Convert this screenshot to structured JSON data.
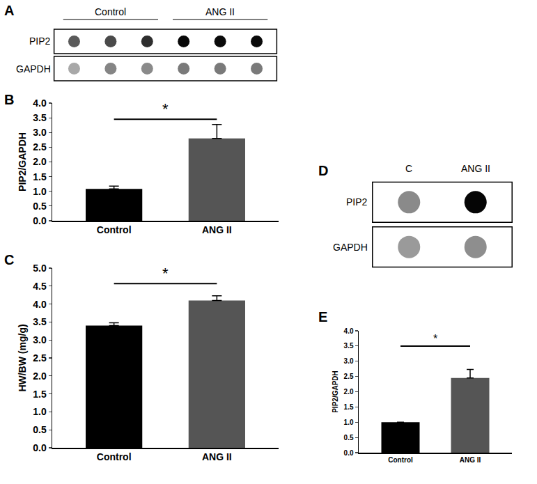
{
  "chart_data": [
    {
      "type": "dot_blot",
      "title": "A",
      "groups": [
        "Control",
        "ANG II"
      ],
      "series": [
        {
          "name": "PIP2",
          "colors": [
            "#5a5a5a",
            "#4a4a4a",
            "#2e2e2e",
            "#080808",
            "#0a0a0a",
            "#0a0a0a"
          ]
        },
        {
          "name": "GAPDH",
          "colors": [
            "#a8a8a8",
            "#858585",
            "#8a8a8a",
            "#7a7a7a",
            "#7a7a7a",
            "#7a7a7a"
          ]
        }
      ]
    },
    {
      "type": "bar",
      "title": "B",
      "categories": [
        "Control",
        "ANG II"
      ],
      "values": [
        1.08,
        2.8
      ],
      "errors": [
        0.1,
        0.47
      ],
      "colors": [
        "#000000",
        "#555555"
      ],
      "ylabel": "PIP2/GAPDH",
      "ylim": [
        0,
        4
      ],
      "yticks": [
        {
          "value": 0,
          "label": "0.0"
        },
        {
          "value": 0.5,
          "label": "0.5"
        },
        {
          "value": 1,
          "label": "1.0"
        },
        {
          "value": 1.5,
          "label": "1.5"
        },
        {
          "value": 2,
          "label": "2.0"
        },
        {
          "value": 2.5,
          "label": "2.5"
        },
        {
          "value": 3,
          "label": "3.0"
        },
        {
          "value": 3.5,
          "label": "3.5"
        },
        {
          "value": 4,
          "label": "4.0"
        }
      ],
      "significance": {
        "text": "*",
        "y": 3.45
      }
    },
    {
      "type": "bar",
      "title": "C",
      "categories": [
        "Control",
        "ANG II"
      ],
      "values": [
        3.4,
        4.1
      ],
      "errors": [
        0.08,
        0.13
      ],
      "colors": [
        "#000000",
        "#555555"
      ],
      "ylabel": "HW/BW (mg/g)",
      "ylim": [
        0,
        5
      ],
      "yticks": [
        {
          "value": 0,
          "label": "0.0"
        },
        {
          "value": 0.5,
          "label": "0.5"
        },
        {
          "value": 1,
          "label": "1.0"
        },
        {
          "value": 1.5,
          "label": "1.5"
        },
        {
          "value": 2,
          "label": "2.0"
        },
        {
          "value": 2.5,
          "label": "2.5"
        },
        {
          "value": 3,
          "label": "3.0"
        },
        {
          "value": 3.5,
          "label": "3.5"
        },
        {
          "value": 4,
          "label": "4.0"
        },
        {
          "value": 4.5,
          "label": "4.5"
        },
        {
          "value": 5,
          "label": "5.0"
        }
      ],
      "significance": {
        "text": "*",
        "y": 4.57
      }
    },
    {
      "type": "dot_blot",
      "title": "D",
      "groups": [
        "C",
        "ANG II"
      ],
      "series": [
        {
          "name": "PIP2",
          "colors": [
            "#8a8a8a",
            "#050505"
          ]
        },
        {
          "name": "GAPDH",
          "colors": [
            "#9a9a9a",
            "#8e8e8e"
          ]
        }
      ]
    },
    {
      "type": "bar",
      "title": "E",
      "categories": [
        "Control",
        "ANG II"
      ],
      "values": [
        1.0,
        2.45
      ],
      "errors": [
        0,
        0.28
      ],
      "colors": [
        "#000000",
        "#555555"
      ],
      "ylabel": "PIP2/GAPDH",
      "ylim": [
        0,
        4
      ],
      "yticks": [
        {
          "value": 0,
          "label": "0.0"
        },
        {
          "value": 0.5,
          "label": "0.5"
        },
        {
          "value": 1,
          "label": "1.0"
        },
        {
          "value": 1.5,
          "label": "1.5"
        },
        {
          "value": 2,
          "label": "2.0"
        },
        {
          "value": 2.5,
          "label": "2.5"
        },
        {
          "value": 3,
          "label": "3.0"
        },
        {
          "value": 3.5,
          "label": "3.5"
        },
        {
          "value": 4,
          "label": "4.0"
        }
      ],
      "significance": {
        "text": "*",
        "y": 3.5
      }
    }
  ]
}
